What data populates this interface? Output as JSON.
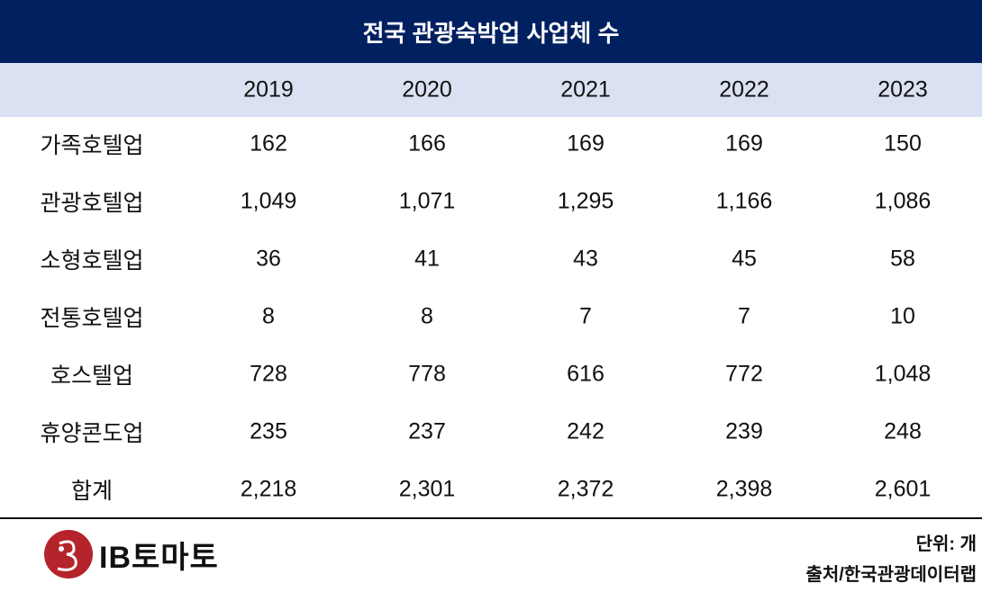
{
  "title": "전국 관광숙박업 사업체 수",
  "chart_data": {
    "type": "table",
    "title": "전국 관광숙박업 사업체 수",
    "columns": [
      "2019",
      "2020",
      "2021",
      "2022",
      "2023"
    ],
    "rows": [
      {
        "label": "가족호텔업",
        "values": [
          "162",
          "166",
          "169",
          "169",
          "150"
        ]
      },
      {
        "label": "관광호텔업",
        "values": [
          "1,049",
          "1,071",
          "1,295",
          "1,166",
          "1,086"
        ]
      },
      {
        "label": "소형호텔업",
        "values": [
          "36",
          "41",
          "43",
          "45",
          "58"
        ]
      },
      {
        "label": "전통호텔업",
        "values": [
          "8",
          "8",
          "7",
          "7",
          "10"
        ]
      },
      {
        "label": "호스텔업",
        "values": [
          "728",
          "778",
          "616",
          "772",
          "1,048"
        ]
      },
      {
        "label": "휴양콘도업",
        "values": [
          "235",
          "237",
          "242",
          "239",
          "248"
        ]
      },
      {
        "label": "합계",
        "values": [
          "2,218",
          "2,301",
          "2,372",
          "2,398",
          "2,601"
        ]
      }
    ]
  },
  "footer": {
    "unit": "단위: 개",
    "source": "출처/한국관광데이터랩",
    "logo_text": "IB토마토"
  },
  "colors": {
    "header": "#00205f",
    "subheader": "#dae1f2",
    "logo": "#b5232b"
  }
}
